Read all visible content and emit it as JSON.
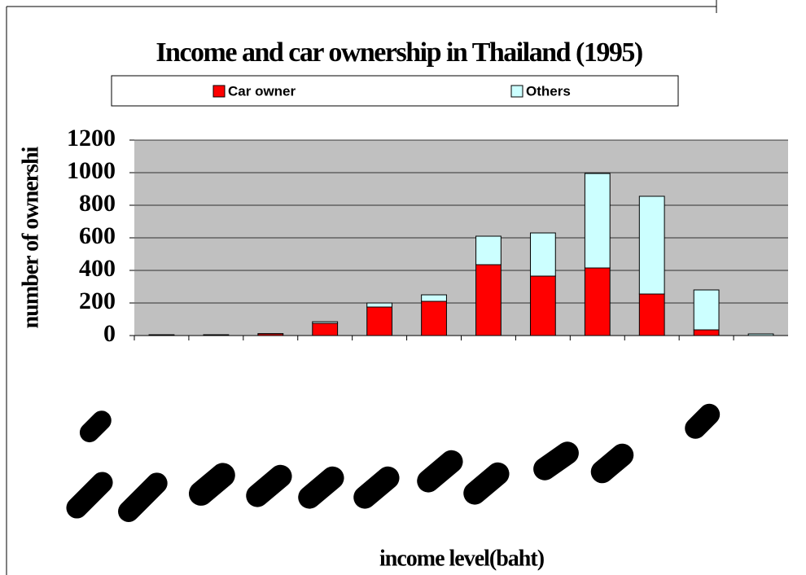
{
  "chart_data": {
    "type": "stacked_bar",
    "title": "Income and car ownership in Thailand (1995)",
    "y_label": "number of ownershi",
    "x_label": "income level(baht)",
    "categories": [
      null,
      null,
      null,
      null,
      null,
      null,
      null,
      null,
      null,
      null,
      null,
      null
    ],
    "series": [
      {
        "name": "Car owner",
        "color": "#ff0000",
        "values": [
          3,
          3,
          10,
          75,
          175,
          210,
          435,
          365,
          415,
          255,
          35,
          0
        ]
      },
      {
        "name": "Others",
        "color": "#ccffff",
        "values": [
          2,
          2,
          2,
          10,
          25,
          40,
          175,
          265,
          580,
          600,
          245,
          10
        ]
      }
    ],
    "ylim": [
      0,
      1200
    ],
    "yticks": [
      0,
      200,
      400,
      600,
      800,
      1000,
      1200
    ],
    "grid": true
  }
}
